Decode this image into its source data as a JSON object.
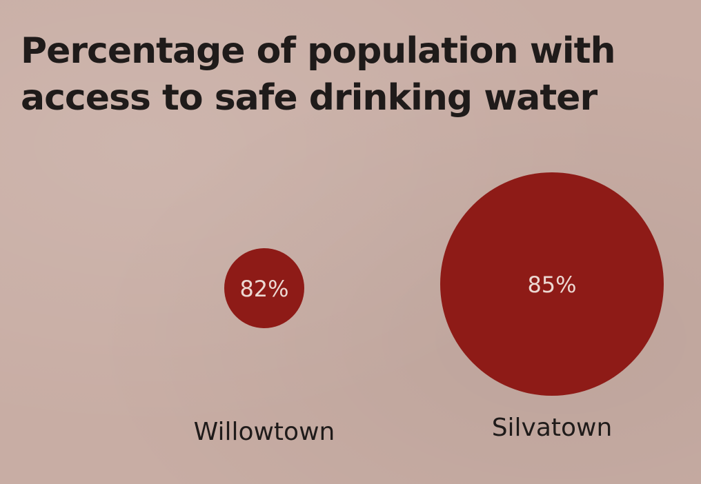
{
  "chart_data": {
    "type": "bubble",
    "title_lines": [
      "Percentage of population with",
      "access to safe drinking water"
    ],
    "categories": [
      "Willowtown",
      "Silvatown"
    ],
    "values": [
      82,
      85
    ],
    "value_labels": [
      "82%",
      "85%"
    ],
    "unit": "%",
    "colors": {
      "bubble": "#8e1b17",
      "background": "#c8ada4",
      "text": "#1f1b1a",
      "bubble_text": "#ecd8d2"
    }
  }
}
